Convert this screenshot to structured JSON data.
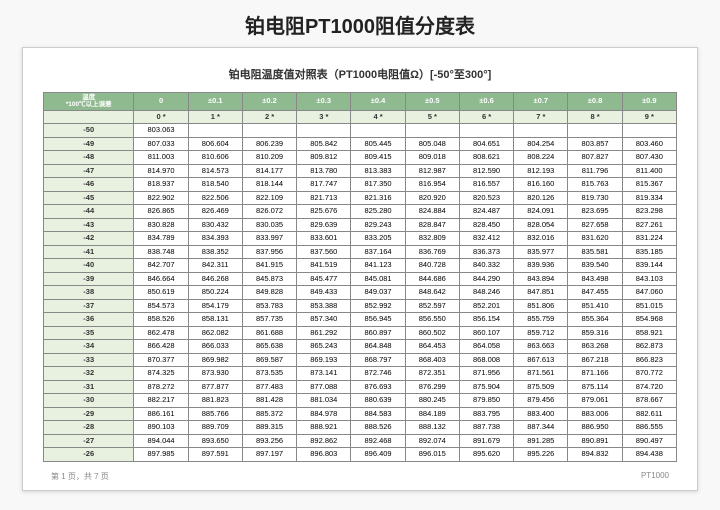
{
  "title": "铂电阻PT1000阻值分度表",
  "subtitle": "铂电阻温度值对照表（PT1000电阻值Ω）[-50°至300°]",
  "corner": "温度\n*100℃以上误差",
  "col_headers": [
    "0",
    "±0.1",
    "±0.2",
    "±0.3",
    "±0.4",
    "±0.5",
    "±0.6",
    "±0.7",
    "±0.8",
    "±0.9"
  ],
  "sub_headers": [
    "0 *",
    "1 *",
    "2 *",
    "3 *",
    "4 *",
    "5 *",
    "6 *",
    "7 *",
    "8 *",
    "9 *"
  ],
  "rows": [
    {
      "t": "-50",
      "v": [
        "803.063",
        "",
        "",
        "",
        "",
        "",
        "",
        "",
        "",
        ""
      ]
    },
    {
      "t": "-49",
      "v": [
        "807.033",
        "806.604",
        "806.239",
        "805.842",
        "805.445",
        "805.048",
        "804.651",
        "804.254",
        "803.857",
        "803.460"
      ]
    },
    {
      "t": "-48",
      "v": [
        "811.003",
        "810.606",
        "810.209",
        "809.812",
        "809.415",
        "809.018",
        "808.621",
        "808.224",
        "807.827",
        "807.430"
      ]
    },
    {
      "t": "-47",
      "v": [
        "814.970",
        "814.573",
        "814.177",
        "813.780",
        "813.383",
        "812.987",
        "812.590",
        "812.193",
        "811.796",
        "811.400"
      ]
    },
    {
      "t": "-46",
      "v": [
        "818.937",
        "818.540",
        "818.144",
        "817.747",
        "817.350",
        "816.954",
        "816.557",
        "816.160",
        "815.763",
        "815.367"
      ]
    },
    {
      "t": "-45",
      "v": [
        "822.902",
        "822.506",
        "822.109",
        "821.713",
        "821.316",
        "820.920",
        "820.523",
        "820.126",
        "819.730",
        "819.334"
      ]
    },
    {
      "t": "-44",
      "v": [
        "826.865",
        "826.469",
        "826.072",
        "825.676",
        "825.280",
        "824.884",
        "824.487",
        "824.091",
        "823.695",
        "823.298"
      ]
    },
    {
      "t": "-43",
      "v": [
        "830.828",
        "830.432",
        "830.035",
        "829.639",
        "829.243",
        "828.847",
        "828.450",
        "828.054",
        "827.658",
        "827.261"
      ]
    },
    {
      "t": "-42",
      "v": [
        "834.789",
        "834.393",
        "833.997",
        "833.601",
        "833.205",
        "832.809",
        "832.412",
        "832.016",
        "831.620",
        "831.224"
      ]
    },
    {
      "t": "-41",
      "v": [
        "838.748",
        "838.352",
        "837.956",
        "837.560",
        "837.164",
        "836.769",
        "836.373",
        "835.977",
        "835.581",
        "835.185"
      ]
    },
    {
      "t": "-40",
      "v": [
        "842.707",
        "842.311",
        "841.915",
        "841.519",
        "841.123",
        "840.728",
        "840.332",
        "839.936",
        "839.540",
        "839.144"
      ]
    },
    {
      "t": "-39",
      "v": [
        "846.664",
        "846.268",
        "845.873",
        "845.477",
        "845.081",
        "844.686",
        "844.290",
        "843.894",
        "843.498",
        "843.103"
      ]
    },
    {
      "t": "-38",
      "v": [
        "850.619",
        "850.224",
        "849.828",
        "849.433",
        "849.037",
        "848.642",
        "848.246",
        "847.851",
        "847.455",
        "847.060"
      ]
    },
    {
      "t": "-37",
      "v": [
        "854.573",
        "854.179",
        "853.783",
        "853.388",
        "852.992",
        "852.597",
        "852.201",
        "851.806",
        "851.410",
        "851.015"
      ]
    },
    {
      "t": "-36",
      "v": [
        "858.526",
        "858.131",
        "857.735",
        "857.340",
        "856.945",
        "856.550",
        "856.154",
        "855.759",
        "855.364",
        "854.968"
      ]
    },
    {
      "t": "-35",
      "v": [
        "862.478",
        "862.082",
        "861.688",
        "861.292",
        "860.897",
        "860.502",
        "860.107",
        "859.712",
        "859.316",
        "858.921"
      ]
    },
    {
      "t": "-34",
      "v": [
        "866.428",
        "866.033",
        "865.638",
        "865.243",
        "864.848",
        "864.453",
        "864.058",
        "863.663",
        "863.268",
        "862.873"
      ]
    },
    {
      "t": "-33",
      "v": [
        "870.377",
        "869.982",
        "869.587",
        "869.193",
        "868.797",
        "868.403",
        "868.008",
        "867.613",
        "867.218",
        "866.823"
      ]
    },
    {
      "t": "-32",
      "v": [
        "874.325",
        "873.930",
        "873.535",
        "873.141",
        "872.746",
        "872.351",
        "871.956",
        "871.561",
        "871.166",
        "870.772"
      ]
    },
    {
      "t": "-31",
      "v": [
        "878.272",
        "877.877",
        "877.483",
        "877.088",
        "876.693",
        "876.299",
        "875.904",
        "875.509",
        "875.114",
        "874.720"
      ]
    },
    {
      "t": "-30",
      "v": [
        "882.217",
        "881.823",
        "881.428",
        "881.034",
        "880.639",
        "880.245",
        "879.850",
        "879.456",
        "879.061",
        "878.667"
      ]
    },
    {
      "t": "-29",
      "v": [
        "886.161",
        "885.766",
        "885.372",
        "884.978",
        "884.583",
        "884.189",
        "883.795",
        "883.400",
        "883.006",
        "882.611"
      ]
    },
    {
      "t": "-28",
      "v": [
        "890.103",
        "889.709",
        "889.315",
        "888.921",
        "888.526",
        "888.132",
        "887.738",
        "887.344",
        "886.950",
        "886.555"
      ]
    },
    {
      "t": "-27",
      "v": [
        "894.044",
        "893.650",
        "893.256",
        "892.862",
        "892.468",
        "892.074",
        "891.679",
        "891.285",
        "890.891",
        "890.497"
      ]
    },
    {
      "t": "-26",
      "v": [
        "897.985",
        "897.591",
        "897.197",
        "896.803",
        "896.409",
        "896.015",
        "895.620",
        "895.226",
        "894.832",
        "894.438"
      ]
    }
  ],
  "footer_left": "第 1 页，共 7 页",
  "footer_right": "PT1000"
}
